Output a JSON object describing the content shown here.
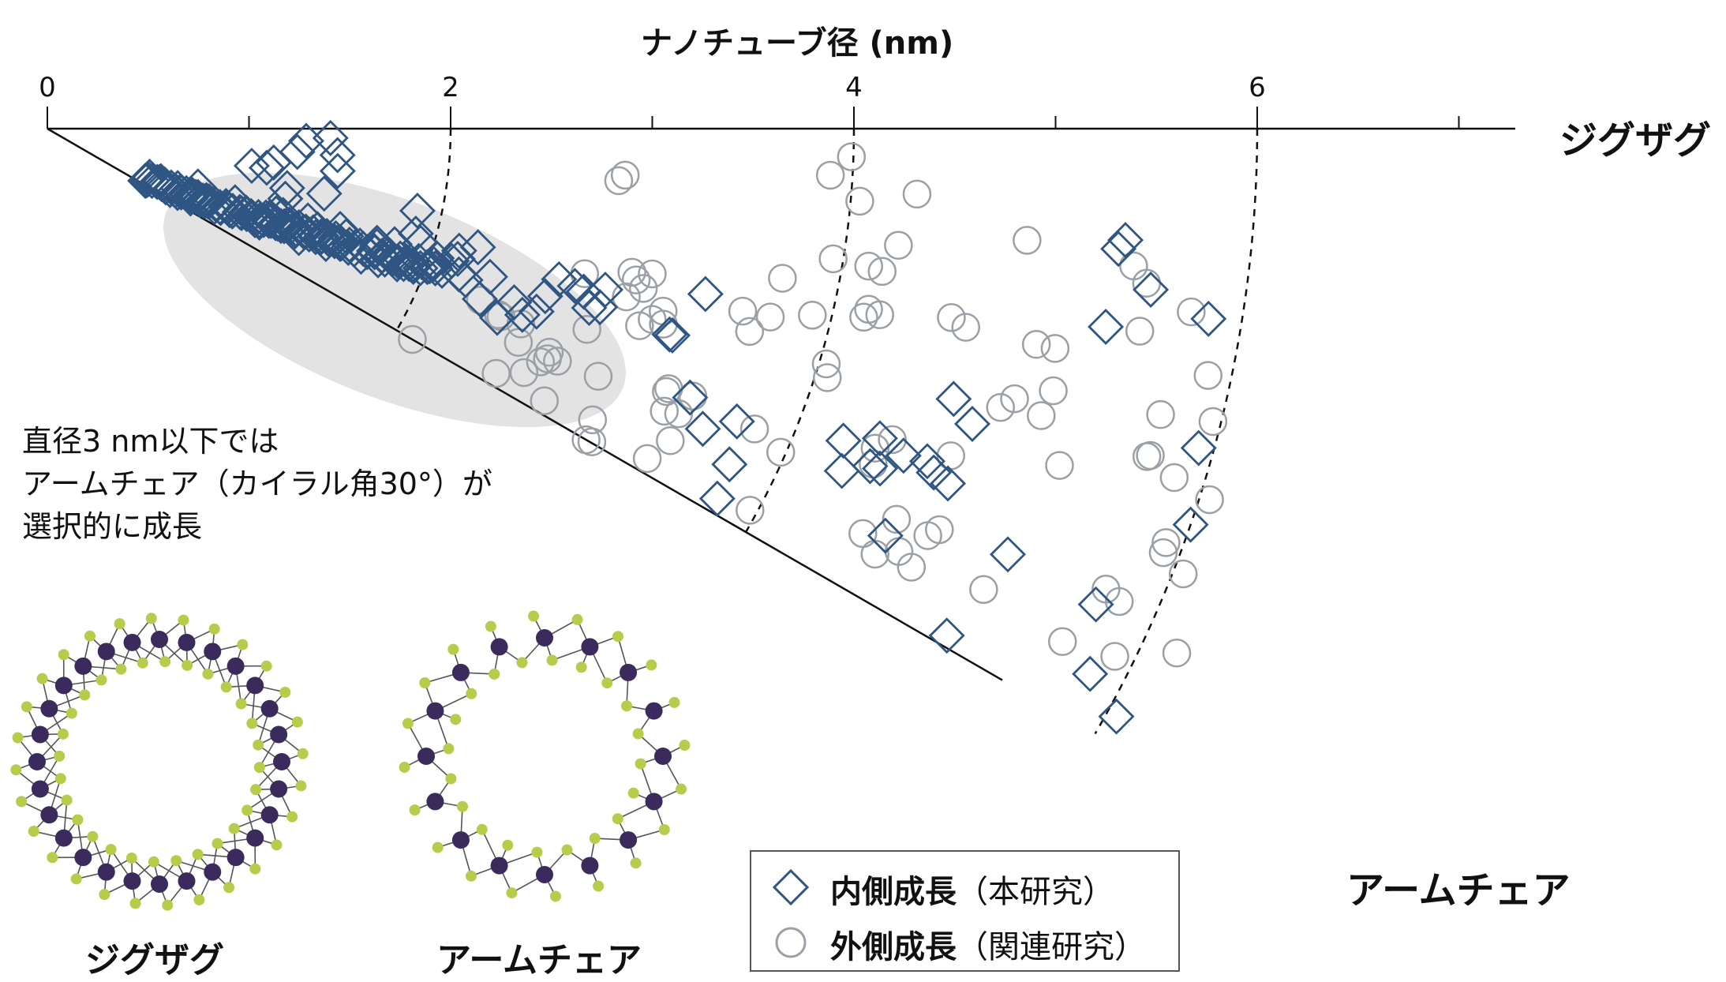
{
  "chart_data": {
    "type": "scatter",
    "title": "",
    "xlabel": "ナノチューブ径 (nm)",
    "x_ticks": [
      "0",
      "2",
      "4",
      "6"
    ],
    "xlim": [
      0,
      7.3
    ],
    "angle_range_deg": [
      0,
      30
    ],
    "edge_labels": {
      "zigzag": "ジグザグ",
      "armchair": "アームチェア"
    },
    "iso_diameter_guides_nm": [
      2,
      4,
      6
    ],
    "highlight_region": {
      "diameter_nm": [
        0.7,
        2.8
      ],
      "note": "ellipse near armchair edge"
    },
    "annotation": [
      "直径3 nm以下では",
      "アームチェア（カイラル角30°）が",
      "選択的に成長"
    ],
    "legend_placement": "bottom-center",
    "series": [
      {
        "name_bold": "内側成長",
        "name_rest": "（本研究）",
        "marker": "diamond",
        "color": "#2f5583",
        "points_diameter_angle": [
          [
            1.11,
            27.5
          ],
          [
            1.16,
            26.5
          ],
          [
            1.21,
            25.9
          ],
          [
            1.26,
            25.9
          ],
          [
            1.31,
            26.4
          ],
          [
            1.36,
            25.4
          ],
          [
            1.41,
            25.8
          ],
          [
            1.47,
            25.5
          ],
          [
            1.52,
            24.9
          ],
          [
            1.58,
            25.4
          ],
          [
            1.64,
            24.4
          ],
          [
            1.7,
            24.8
          ],
          [
            1.76,
            24.2
          ],
          [
            1.83,
            24.2
          ],
          [
            1.88,
            24.4
          ],
          [
            1.95,
            23.7
          ],
          [
            2.01,
            24.1
          ],
          [
            2.08,
            23.4
          ],
          [
            2.14,
            22.9
          ],
          [
            2.2,
            23.2
          ],
          [
            2.27,
            22.7
          ],
          [
            2.33,
            22.9
          ],
          [
            2.4,
            22.4
          ],
          [
            2.47,
            22.4
          ],
          [
            2.54,
            22.4
          ],
          [
            2.6,
            22.2
          ],
          [
            2.66,
            22.0
          ],
          [
            2.74,
            21.9
          ],
          [
            2.8,
            22.0
          ],
          [
            2.87,
            22.0
          ],
          [
            2.92,
            21.4
          ],
          [
            2.99,
            21.4
          ],
          [
            3.06,
            21.4
          ],
          [
            3.13,
            21.3
          ],
          [
            3.21,
            21.0
          ],
          [
            3.27,
            21.5
          ],
          [
            3.35,
            20.8
          ],
          [
            3.4,
            21.1
          ],
          [
            3.47,
            20.7
          ],
          [
            3.55,
            20.8
          ],
          [
            3.59,
            21.2
          ],
          [
            3.66,
            20.7
          ],
          [
            3.73,
            20.8
          ],
          [
            3.8,
            20.3
          ],
          [
            3.87,
            20.4
          ],
          [
            3.95,
            20.5
          ],
          [
            4.01,
            20.0
          ],
          [
            4.09,
            19.8
          ],
          [
            4.16,
            19.8
          ],
          [
            1.12,
            26.5
          ],
          [
            1.23,
            25.5
          ],
          [
            1.36,
            26.6
          ],
          [
            1.44,
            26.3
          ],
          [
            1.58,
            26.0
          ],
          [
            1.67,
            25.0
          ],
          [
            1.73,
            24.2
          ],
          [
            1.83,
            25.2
          ],
          [
            2.01,
            23.9
          ],
          [
            2.15,
            23.2
          ],
          [
            2.29,
            23.5
          ],
          [
            2.34,
            22.1
          ],
          [
            2.51,
            22.6
          ],
          [
            2.58,
            21.6
          ],
          [
            2.76,
            21.7
          ],
          [
            2.97,
            21.0
          ],
          [
            3.06,
            20.8
          ],
          [
            3.31,
            20.5
          ],
          [
            3.46,
            20.5
          ],
          [
            3.6,
            20.3
          ],
          [
            1.29,
            25.4
          ],
          [
            1.46,
            25.2
          ],
          [
            1.72,
            24.8
          ],
          [
            1.89,
            24.6
          ],
          [
            2.25,
            23.8
          ],
          [
            2.66,
            22.5
          ],
          [
            3.21,
            21.6
          ],
          [
            3.63,
            20.4
          ],
          [
            3.83,
            20.5
          ],
          [
            4.03,
            19.8
          ],
          [
            2.0,
            21.4
          ],
          [
            2.1,
            23.5
          ],
          [
            2.38,
            22.6
          ],
          [
            2.56,
            21.8
          ],
          [
            2.72,
            23.5
          ],
          [
            2.92,
            21.7
          ],
          [
            3.12,
            21.5
          ],
          [
            3.36,
            22.2
          ],
          [
            3.53,
            21.7
          ],
          [
            3.72,
            21.2
          ],
          [
            1.1,
            28.0
          ],
          [
            1.24,
            24.8
          ],
          [
            1.57,
            24.9
          ],
          [
            1.93,
            23.4
          ],
          [
            2.37,
            22.0
          ],
          [
            3.1,
            21.2
          ],
          [
            3.47,
            19.6
          ],
          [
            3.78,
            20.8
          ],
          [
            1.57,
            24.4
          ],
          [
            2.3,
            23.9
          ],
          [
            2.99,
            22.5
          ],
          [
            1.12,
            25.2
          ],
          [
            1.42,
            24.5
          ],
          [
            1.62,
            24.7
          ],
          [
            1.98,
            24.1
          ],
          [
            2.45,
            22.5
          ],
          [
            2.68,
            21.4
          ],
          [
            2.83,
            21.3
          ],
          [
            2.74,
            19.4
          ],
          [
            3.07,
            18.9
          ],
          [
            3.46,
            19.1
          ],
          [
            3.63,
            18.4
          ],
          [
            3.73,
            20.2
          ],
          [
            3.88,
            20.7
          ],
          [
            3.91,
            19.6
          ],
          [
            4.06,
            19.3
          ],
          [
            4.27,
            17.6
          ],
          [
            1.75,
            24.4
          ],
          [
            2.49,
            20.1
          ],
          [
            2.86,
            20.4
          ],
          [
            3.15,
            19.8
          ],
          [
            1.6,
            21.0
          ],
          [
            2.42,
            20.3
          ],
          [
            2.46,
            16.4
          ],
          [
            2.45,
            13.9
          ],
          [
            2.06,
            10.3
          ],
          [
            2.21,
            10.1
          ],
          [
            2.27,
            8.5
          ],
          [
            2.49,
            5.3
          ],
          [
            2.57,
            2.7
          ],
          [
            2.81,
            1.9
          ],
          [
            2.91,
            8.3
          ],
          [
            2.89,
            5.2
          ],
          [
            2.82,
            13.2
          ],
          [
            3.76,
            12.5
          ],
          [
            3.8,
            15.9
          ],
          [
            3.87,
            17.0
          ],
          [
            4.07,
            18.4
          ],
          [
            4.26,
            16.5
          ],
          [
            4.43,
            15.4
          ],
          [
            4.33,
            19.5
          ],
          [
            4.22,
            18.1
          ],
          [
            4.41,
            19.9
          ],
          [
            4.63,
            18.5
          ],
          [
            4.61,
            21.5
          ],
          [
            4.84,
            22.8
          ],
          [
            4.94,
            20.4
          ],
          [
            5.06,
            21.4
          ],
          [
            5.18,
            20.5
          ],
          [
            5.21,
            18.6
          ],
          [
            5.29,
            16.4
          ],
          [
            5.46,
            16.6
          ],
          [
            5.56,
            16.9
          ],
          [
            5.66,
            18.3
          ],
          [
            5.76,
            17.9
          ],
          [
            5.76,
            16.1
          ],
          [
            6.5,
            18.3
          ],
          [
            6.53,
            18.3
          ],
          [
            6.73,
            14.1
          ],
          [
            6.91,
            22.7
          ],
          [
            7.15,
            24.6
          ],
          [
            7.43,
            23.0
          ],
          [
            7.54,
            26.2
          ],
          [
            7.59,
            28.9
          ],
          [
            8.48,
            21.4
          ],
          [
            8.58,
            23.3
          ],
          [
            8.81,
            20.4
          ],
          [
            8.82,
            22.3
          ],
          [
            8.92,
            22.2
          ],
          [
            9.09,
            20.9
          ],
          [
            9.24,
            25.9
          ],
          [
            9.33,
            20.7
          ],
          [
            9.38,
            16.6
          ],
          [
            9.43,
            21.2
          ],
          [
            9.6,
            21.5
          ],
          [
            9.63,
            17.7
          ],
          [
            10.24,
            29.4
          ],
          [
            10.42,
            23.9
          ],
          [
            10.68,
            10.6
          ],
          [
            10.69,
            6.4
          ],
          [
            10.75,
            5.9
          ],
          [
            11.06,
            8.3
          ],
          [
            11.42,
            24.4
          ],
          [
            11.67,
            27.6
          ],
          [
            11.67,
            9.3
          ],
          [
            11.85,
            15.5
          ],
          [
            12.0,
            19.1
          ],
          [
            12.1,
            28.8
          ]
        ]
      },
      {
        "name_bold": "外側成長",
        "name_rest": "（関連研究）",
        "marker": "circle",
        "color": "#9aa0a6",
        "points_diameter_angle": [
          [
            4.18,
            30.0
          ],
          [
            4.62,
            21.6
          ],
          [
            4.84,
            22.4
          ],
          [
            4.87,
            22.5
          ],
          [
            5.08,
            22.4
          ],
          [
            5.07,
            28.6
          ],
          [
            5.13,
            24.4
          ],
          [
            5.31,
            27.1
          ],
          [
            5.41,
            25.3
          ],
          [
            5.46,
            24.7
          ],
          [
            5.45,
            24.0
          ],
          [
            5.52,
            15.1
          ],
          [
            5.56,
            24.5
          ],
          [
            5.62,
            28.7
          ],
          [
            5.71,
            20.4
          ],
          [
            5.97,
            13.8
          ],
          [
            5.99,
            24.2
          ],
          [
            6.13,
            28.1
          ],
          [
            6.17,
            30.0
          ],
          [
            6.23,
            29.9
          ],
          [
            5.69,
            5.2
          ],
          [
            5.75,
            4.6
          ],
          [
            5.98,
            16.2
          ],
          [
            6.03,
            14.4
          ],
          [
            6.12,
            15.0
          ],
          [
            6.17,
            13.5
          ],
          [
            6.19,
            18.4
          ],
          [
            6.29,
            17.5
          ],
          [
            6.37,
            16.5
          ],
          [
            6.41,
            17.6
          ],
          [
            6.67,
            23.0
          ],
          [
            6.68,
            22.7
          ],
          [
            6.79,
            28.8
          ],
          [
            6.73,
            24.6
          ],
          [
            6.87,
            24.3
          ],
          [
            6.91,
            26.6
          ],
          [
            6.93,
            22.5
          ],
          [
            7.13,
            14.7
          ],
          [
            7.25,
            16.1
          ],
          [
            7.41,
            14.6
          ],
          [
            7.44,
            11.5
          ],
          [
            7.62,
            23.0
          ],
          [
            7.81,
            13.7
          ],
          [
            7.9,
            9.4
          ],
          [
            7.93,
            28.5
          ],
          [
            7.95,
            23.8
          ],
          [
            7.78,
            3.4
          ],
          [
            7.98,
            2.0
          ],
          [
            8.09,
            5.1
          ],
          [
            8.26,
            9.5
          ],
          [
            8.07,
            16.8
          ],
          [
            8.12,
            17.7
          ],
          [
            8.31,
            13.0
          ],
          [
            8.34,
            12.4
          ],
          [
            8.4,
            9.7
          ],
          [
            8.46,
            12.6
          ],
          [
            8.52,
            7.8
          ],
          [
            8.65,
            4.3
          ],
          [
            8.8,
            21.1
          ],
          [
            8.84,
            22.1
          ],
          [
            8.93,
            20.2
          ],
          [
            9.03,
            26.4
          ],
          [
            9.16,
            11.8
          ],
          [
            9.23,
            27.2
          ],
          [
            9.27,
            24.7
          ],
          [
            9.32,
            12.2
          ],
          [
            9.43,
            26.4
          ],
          [
            9.53,
            19.9
          ],
          [
            9.61,
            26.9
          ],
          [
            9.62,
            24.8
          ],
          [
            9.7,
            24.2
          ],
          [
            9.78,
            6.5
          ],
          [
            9.85,
            16.3
          ],
          [
            9.96,
            15.6
          ],
          [
            10.04,
            12.3
          ],
          [
            10.23,
            12.3
          ],
          [
            10.26,
            16.1
          ],
          [
            10.31,
            14.6
          ],
          [
            10.35,
            26.2
          ],
          [
            10.58,
            18.4
          ],
          [
            10.86,
            7.2
          ],
          [
            11.01,
            8.0
          ],
          [
            11.02,
            10.5
          ],
          [
            11.28,
            26.8
          ],
          [
            11.38,
            16.6
          ],
          [
            11.4,
            14.4
          ],
          [
            11.41,
            16.5
          ],
          [
            11.45,
            23.5
          ],
          [
            11.49,
            9.1
          ],
          [
            11.62,
            23.8
          ],
          [
            11.7,
            17.2
          ],
          [
            11.77,
            12.0
          ],
          [
            11.81,
            26.3
          ],
          [
            11.83,
            20.3
          ],
          [
            11.84,
            20.8
          ],
          [
            11.92,
            14.1
          ],
          [
            12.1,
            17.7
          ],
          [
            12.1,
            21.4
          ],
          [
            12.35,
            24.9
          ]
        ]
      }
    ]
  },
  "legend": {
    "items": [
      {
        "bold": "内側成長",
        "rest": "（本研究）"
      },
      {
        "bold": "外側成長",
        "rest": "（関連研究）"
      }
    ]
  },
  "models": {
    "zigzag_label": "ジグザグ",
    "armchair_label": "アームチェア"
  }
}
